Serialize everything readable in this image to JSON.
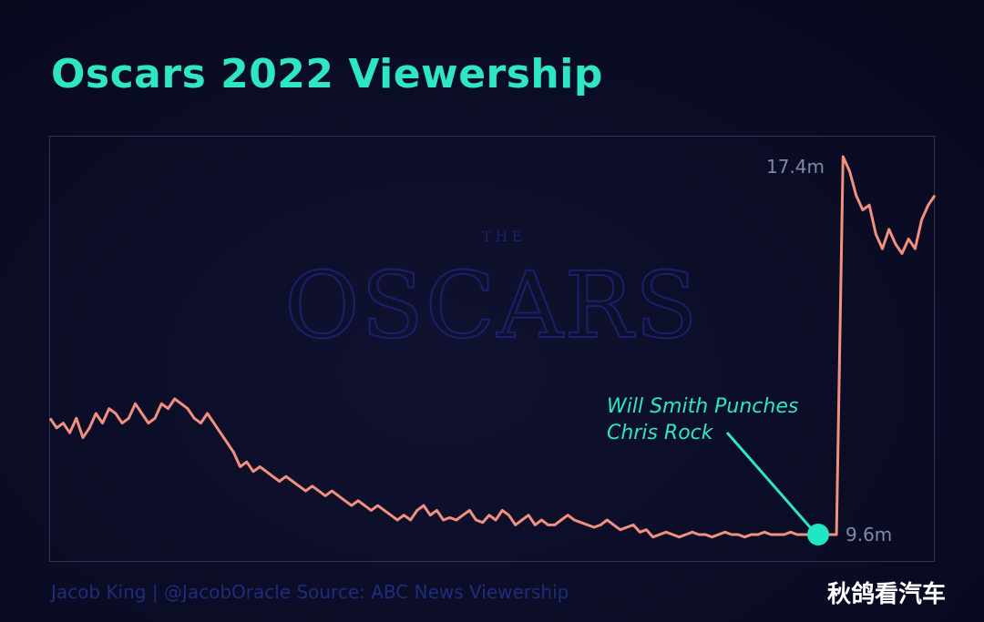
{
  "title": "Oscars 2022 Viewership",
  "chart_data": {
    "type": "line",
    "title": "Oscars 2022 Viewership",
    "xlabel": "",
    "ylabel": "",
    "ylim": [
      9.0,
      17.6
    ],
    "grid": false,
    "series": [
      {
        "color": "#f2907f",
        "values": [
          12.0,
          11.8,
          11.9,
          11.7,
          12.0,
          11.6,
          11.8,
          12.1,
          11.9,
          12.2,
          12.1,
          11.9,
          12.0,
          12.3,
          12.1,
          11.9,
          12.0,
          12.3,
          12.2,
          12.4,
          12.3,
          12.2,
          12.0,
          11.9,
          12.1,
          11.9,
          11.7,
          11.5,
          11.3,
          11.0,
          11.1,
          10.9,
          11.0,
          10.9,
          10.8,
          10.7,
          10.8,
          10.7,
          10.6,
          10.5,
          10.6,
          10.5,
          10.4,
          10.5,
          10.4,
          10.3,
          10.2,
          10.3,
          10.2,
          10.1,
          10.2,
          10.1,
          10.0,
          9.9,
          10.0,
          9.9,
          10.1,
          10.2,
          10.0,
          10.1,
          9.9,
          9.95,
          9.9,
          10.0,
          10.1,
          9.9,
          9.85,
          10.0,
          9.9,
          10.1,
          10.0,
          9.8,
          9.9,
          10.0,
          9.8,
          9.9,
          9.8,
          9.8,
          9.9,
          10.0,
          9.9,
          9.85,
          9.8,
          9.75,
          9.8,
          9.9,
          9.8,
          9.7,
          9.75,
          9.8,
          9.65,
          9.7,
          9.55,
          9.6,
          9.65,
          9.6,
          9.55,
          9.6,
          9.65,
          9.6,
          9.6,
          9.55,
          9.6,
          9.65,
          9.6,
          9.6,
          9.55,
          9.6,
          9.6,
          9.65,
          9.6,
          9.6,
          9.6,
          9.65,
          9.6,
          9.6,
          9.6,
          9.6,
          9.6,
          9.6,
          9.6,
          17.4,
          17.1,
          16.6,
          16.3,
          16.4,
          15.8,
          15.5,
          15.9,
          15.6,
          15.4,
          15.7,
          15.5,
          16.1,
          16.4,
          16.6
        ]
      }
    ],
    "annotations": [
      {
        "text": "17.4m",
        "value": 17.4
      },
      {
        "text": "9.6m",
        "value": 9.6
      },
      {
        "line1": "Will Smith Punches",
        "line2": "Chris Rock"
      }
    ],
    "background_logo": {
      "line1": "THE",
      "line2": "OSCARS"
    }
  },
  "footer": {
    "credit": "Jacob King | @JacobOracle   Source: ABC News Viewership"
  },
  "watermark": "秋鸽看汽车",
  "colors": {
    "title": "#2fe6c4",
    "line": "#f2907f",
    "annotation": "#2fe6c4",
    "marker": "#21e6c6",
    "label": "#7f8aa6",
    "frame": "#2a3a52",
    "background": "#0b0c26"
  }
}
